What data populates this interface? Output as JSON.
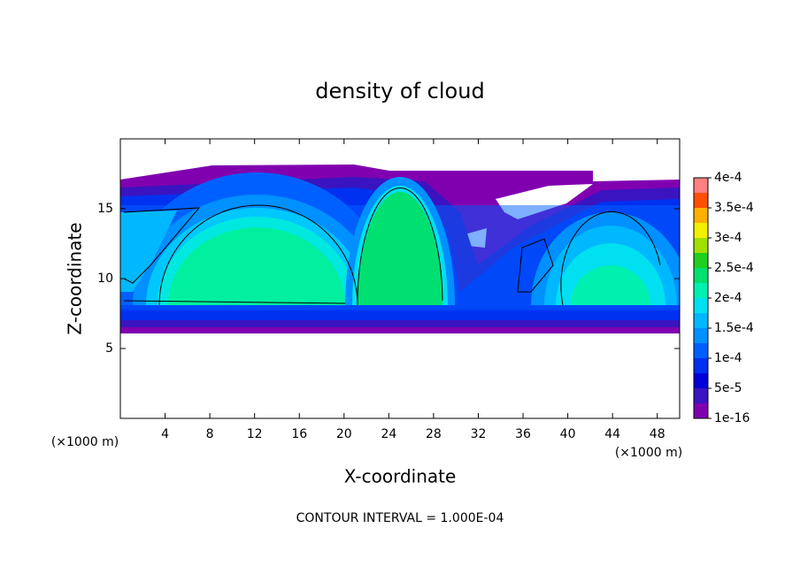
{
  "chart_data": {
    "type": "contour",
    "title": "density of cloud",
    "x_label": "X-coordinate",
    "y_label": "Z-coordinate",
    "x_unit": "(×1000 m)",
    "footer": "CONTOUR INTERVAL = 1.000E-04",
    "xlim": [
      0,
      50
    ],
    "xticks": [
      4,
      8,
      12,
      16,
      20,
      24,
      28,
      32,
      36,
      40,
      44,
      48
    ],
    "ylim": [
      0,
      20
    ],
    "yticks": [
      5,
      10,
      15
    ],
    "colorbar": {
      "lim": [
        1e-16,
        0.0004
      ],
      "ticks": [
        {
          "value": 1e-16,
          "label": "1e-16"
        },
        {
          "value": 5e-05,
          "label": "5e-5"
        },
        {
          "value": 0.0001,
          "label": "1e-4"
        },
        {
          "value": 0.00015,
          "label": "1.5e-4"
        },
        {
          "value": 0.0002,
          "label": "2e-4"
        },
        {
          "value": 0.00025,
          "label": "2.5e-4"
        },
        {
          "value": 0.0003,
          "label": "3e-4"
        },
        {
          "value": 0.00035,
          "label": "3.5e-4"
        },
        {
          "value": 0.0004,
          "label": "4e-4"
        }
      ],
      "colors": [
        "#8000b0",
        "#3a14c0",
        "#0000d8",
        "#0030f0",
        "#0060ff",
        "#0090ff",
        "#00b8ff",
        "#00e0f0",
        "#00f0b0",
        "#00e070",
        "#20d020",
        "#a0e000",
        "#f0f000",
        "#ffb000",
        "#ff5000",
        "#ff8080"
      ]
    }
  }
}
